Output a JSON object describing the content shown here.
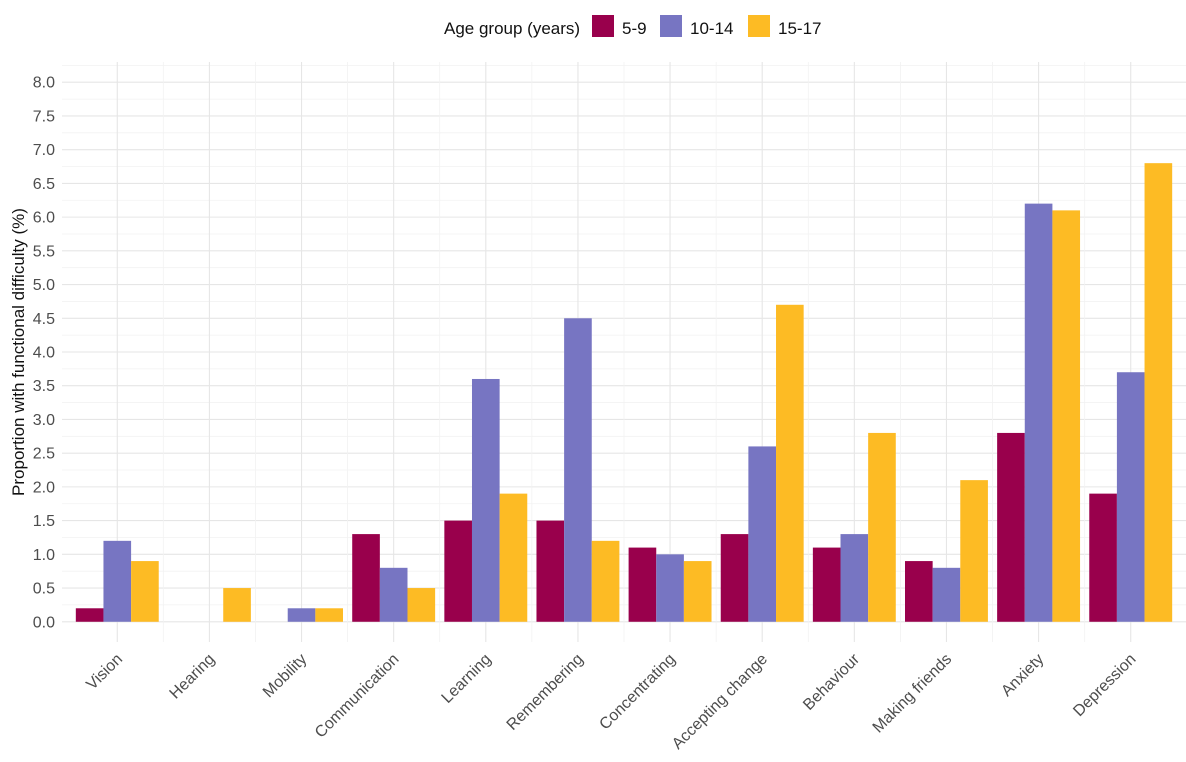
{
  "chart_data": {
    "type": "bar",
    "legend": {
      "title": "Age group (years)",
      "position": "top"
    },
    "categories": [
      "Vision",
      "Hearing",
      "Mobility",
      "Communication",
      "Learning",
      "Remembering",
      "Concentrating",
      "Accepting change",
      "Behaviour",
      "Making friends",
      "Anxiety",
      "Depression"
    ],
    "series": [
      {
        "name": "5-9",
        "color": "#99004c",
        "values": [
          0.2,
          null,
          null,
          1.3,
          1.5,
          1.5,
          1.1,
          1.3,
          1.1,
          0.9,
          2.8,
          1.9
        ]
      },
      {
        "name": "10-14",
        "color": "#7775c2",
        "values": [
          1.2,
          null,
          0.2,
          0.8,
          3.6,
          4.5,
          1.0,
          2.6,
          1.3,
          0.8,
          6.2,
          3.7
        ]
      },
      {
        "name": "15-17",
        "color": "#fdbb24",
        "values": [
          0.9,
          0.5,
          0.2,
          0.5,
          1.9,
          1.2,
          0.9,
          4.7,
          2.8,
          2.1,
          6.1,
          6.8
        ]
      }
    ],
    "ylabel": "Proportion with functional difficulty (%)",
    "xlabel": "",
    "ylim": [
      -0.3,
      8.3
    ],
    "yticks": [
      "0.0",
      "0.5",
      "1.0",
      "1.5",
      "2.0",
      "2.5",
      "3.0",
      "3.5",
      "4.0",
      "4.5",
      "5.0",
      "5.5",
      "6.0",
      "6.5",
      "7.0",
      "7.5",
      "8.0"
    ],
    "grid": true
  }
}
